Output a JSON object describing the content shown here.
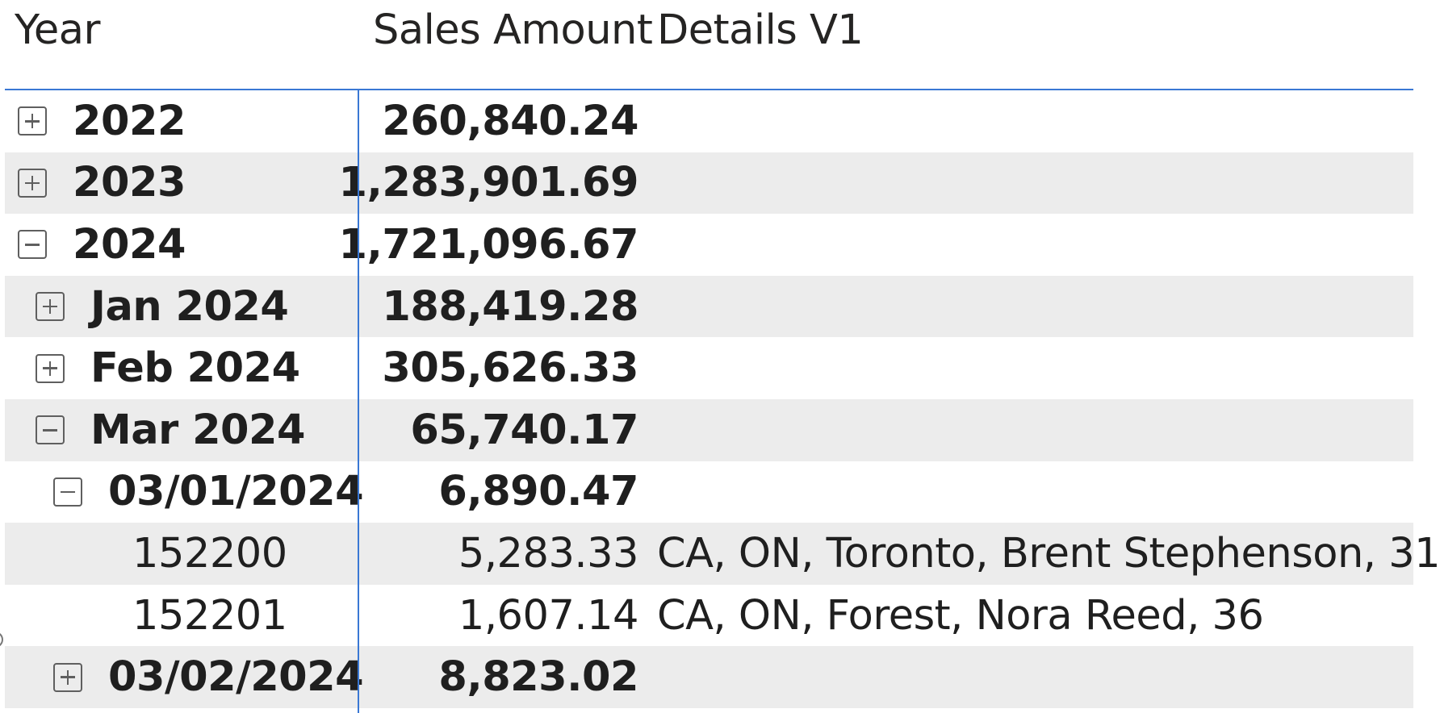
{
  "header": {
    "year": "Year",
    "sales_amount": "Sales Amount",
    "details": "Details V1"
  },
  "rows": [
    {
      "label": "2022",
      "sales": "260,840.24",
      "details": "",
      "level": 0,
      "expander": "plus",
      "bold": true
    },
    {
      "label": "2023",
      "sales": "1,283,901.69",
      "details": "",
      "level": 0,
      "expander": "plus",
      "bold": true
    },
    {
      "label": "2024",
      "sales": "1,721,096.67",
      "details": "",
      "level": 0,
      "expander": "minus",
      "bold": true
    },
    {
      "label": "Jan 2024",
      "sales": "188,419.28",
      "details": "",
      "level": 1,
      "expander": "plus",
      "bold": true
    },
    {
      "label": "Feb 2024",
      "sales": "305,626.33",
      "details": "",
      "level": 1,
      "expander": "plus",
      "bold": true
    },
    {
      "label": "Mar 2024",
      "sales": "65,740.17",
      "details": "",
      "level": 1,
      "expander": "minus",
      "bold": true
    },
    {
      "label": "03/01/2024",
      "sales": "6,890.47",
      "details": "",
      "level": 2,
      "expander": "minus",
      "bold": true
    },
    {
      "label": "152200",
      "sales": "5,283.33",
      "details": "CA, ON, Toronto, Brent Stephenson, 31",
      "level": 3,
      "expander": "none",
      "bold": false
    },
    {
      "label": "152201",
      "sales": "1,607.14",
      "details": "CA, ON, Forest, Nora Reed, 36",
      "level": 3,
      "expander": "none",
      "bold": false
    },
    {
      "label": "03/02/2024",
      "sales": "8,823.02",
      "details": "",
      "level": 2,
      "expander": "plus",
      "bold": true
    }
  ],
  "colors": {
    "grid_line": "#3a78d4",
    "row_shade": "#ececec",
    "text": "#1f1f1f"
  },
  "icons": {
    "expand": "plus-square-icon",
    "collapse": "minus-square-icon"
  }
}
